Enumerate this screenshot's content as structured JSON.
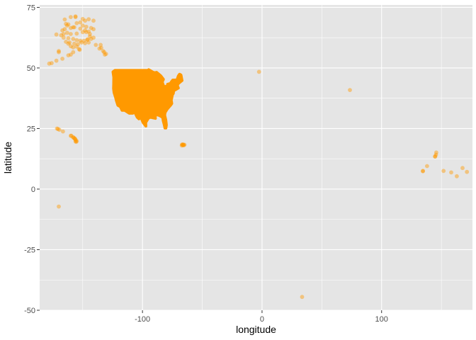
{
  "chart_data": {
    "type": "scatter",
    "title": "",
    "xlabel": "longitude",
    "ylabel": "latitude",
    "xlim": [
      -186,
      176
    ],
    "ylim": [
      -50,
      76
    ],
    "x_ticks": [
      {
        "value": -100,
        "label": "-100"
      },
      {
        "value": 0,
        "label": "0"
      },
      {
        "value": 100,
        "label": "100"
      }
    ],
    "y_ticks": [
      {
        "value": -50,
        "label": "-50"
      },
      {
        "value": -25,
        "label": "-25"
      },
      {
        "value": 0,
        "label": "0"
      },
      {
        "value": 25,
        "label": "25"
      },
      {
        "value": 50,
        "label": "50"
      },
      {
        "value": 75,
        "label": "75"
      }
    ],
    "grid": true,
    "panel_background": "#e5e5e5",
    "grid_color": "#ffffff",
    "point_color": "#ff9900",
    "point_alpha": 0.45,
    "series": [
      {
        "points": [
          [
            -165,
            70
          ],
          [
            -160,
            71
          ],
          [
            -156,
            71.3
          ],
          [
            -150,
            70.2
          ],
          [
            -145,
            70.1
          ],
          [
            -162,
            68
          ],
          [
            -155,
            68.5
          ],
          [
            -150,
            67.5
          ],
          [
            -147,
            67
          ],
          [
            -143,
            66.5
          ],
          [
            -165,
            66
          ],
          [
            -160,
            66.5
          ],
          [
            -157,
            66.8
          ],
          [
            -152,
            66.2
          ],
          [
            -148,
            65.5
          ],
          [
            -145,
            65
          ],
          [
            -141,
            66
          ],
          [
            -163,
            64.5
          ],
          [
            -160,
            64
          ],
          [
            -155,
            64.2
          ],
          [
            -150,
            64.8
          ],
          [
            -147,
            64.8
          ],
          [
            -144,
            64
          ],
          [
            -166,
            62.5
          ],
          [
            -162,
            62.3
          ],
          [
            -158,
            62
          ],
          [
            -155,
            61.5
          ],
          [
            -152,
            61.2
          ],
          [
            -149,
            61.2
          ],
          [
            -146,
            61.6
          ],
          [
            -143,
            62
          ],
          [
            -141,
            62.5
          ],
          [
            -164,
            60.8
          ],
          [
            -161,
            60.5
          ],
          [
            -157,
            60
          ],
          [
            -154,
            59.8
          ],
          [
            -151,
            60.5
          ],
          [
            -148,
            60.2
          ],
          [
            -145,
            60.5
          ],
          [
            -153,
            57.8
          ],
          [
            -152.5,
            57.5
          ],
          [
            -158,
            58.5
          ],
          [
            -155,
            58.8
          ],
          [
            -160,
            59
          ],
          [
            -162,
            60
          ],
          [
            -135,
            59.5
          ],
          [
            -134.5,
            58.3
          ],
          [
            -133,
            57
          ],
          [
            -132,
            56.5
          ],
          [
            -131.5,
            55.5
          ],
          [
            -130.5,
            55.8
          ],
          [
            -136,
            58
          ],
          [
            -139,
            59.5
          ],
          [
            -146,
            61.8
          ],
          [
            -144,
            63
          ],
          [
            -166,
            64
          ],
          [
            -167,
            65.5
          ],
          [
            -168,
            63.5
          ],
          [
            -170,
            57
          ],
          [
            -172,
            53
          ],
          [
            -176,
            52
          ],
          [
            -178,
            51.8
          ],
          [
            -167,
            53.8
          ],
          [
            -162,
            55.2
          ],
          [
            -160,
            55.5
          ],
          [
            -158,
            56.5
          ],
          [
            -170,
            56.5
          ],
          [
            -172,
            63.8
          ],
          [
            -156,
            71
          ],
          [
            -148,
            69.5
          ],
          [
            -141,
            69.5
          ],
          [
            -152,
            68.8
          ],
          [
            -163,
            67.5
          ],
          [
            -158,
            66.8
          ],
          [
            -164,
            68.2
          ]
        ]
      },
      {
        "points": [
          [
            -156,
            19.7
          ],
          [
            -155.5,
            19.5
          ],
          [
            -155,
            19.8
          ],
          [
            -156.5,
            20.8
          ],
          [
            -157,
            21
          ],
          [
            -158,
            21.4
          ],
          [
            -159.5,
            22
          ],
          [
            -157.8,
            21.3
          ],
          [
            -160,
            22
          ],
          [
            -155.8,
            20.2
          ],
          [
            -156.3,
            20.6
          ]
        ]
      },
      {
        "points": [
          [
            -170.7,
            24.8
          ],
          [
            -171.5,
            25
          ],
          [
            -169.5,
            24.5
          ],
          [
            -166.5,
            23.8
          ],
          [
            -170,
            -7.2
          ]
        ]
      },
      {
        "points": [
          [
            -67,
            18.4
          ],
          [
            -66.5,
            18.2
          ],
          [
            -66,
            18.3
          ],
          [
            -65.8,
            18.1
          ],
          [
            -64.9,
            18.3
          ],
          [
            -67.1,
            18
          ],
          [
            -66.2,
            18.45
          ],
          [
            -65.3,
            18.2
          ]
        ]
      },
      {
        "points": [
          [
            144.8,
            13.4
          ],
          [
            145.7,
            15.1
          ],
          [
            145.5,
            14.2
          ],
          [
            134.5,
            7.4
          ],
          [
            138,
            9.5
          ],
          [
            151.8,
            7.5
          ],
          [
            158.2,
            6.9
          ],
          [
            162.9,
            5.3
          ],
          [
            167.7,
            8.7
          ],
          [
            171.4,
            7.1
          ],
          [
            144.7,
            13.5
          ],
          [
            134.6,
            7.5
          ]
        ]
      },
      {
        "points": [
          [
            -2.5,
            48.4
          ],
          [
            73.5,
            40.9
          ],
          [
            33.5,
            -44.5
          ]
        ]
      }
    ],
    "filled_region": {
      "name": "contiguous US",
      "polygon": [
        [
          -124.7,
          48.4
        ],
        [
          -123,
          49
        ],
        [
          -95.2,
          49
        ],
        [
          -94.8,
          49.3
        ],
        [
          -91,
          48.2
        ],
        [
          -89.6,
          48
        ],
        [
          -88.2,
          48.2
        ],
        [
          -84.8,
          46.8
        ],
        [
          -84,
          46.3
        ],
        [
          -83.4,
          45.9
        ],
        [
          -82.5,
          45.3
        ],
        [
          -83.5,
          44.2
        ],
        [
          -82.5,
          42.8
        ],
        [
          -83.2,
          42
        ],
        [
          -79,
          42.6
        ],
        [
          -79,
          43.3
        ],
        [
          -76.5,
          43.6
        ],
        [
          -76,
          44.2
        ],
        [
          -74.7,
          45
        ],
        [
          -71.5,
          45
        ],
        [
          -71,
          45.3
        ],
        [
          -70,
          46.7
        ],
        [
          -69,
          47.4
        ],
        [
          -67.8,
          47.1
        ],
        [
          -66.9,
          44.8
        ],
        [
          -68.5,
          44.2
        ],
        [
          -70.2,
          43.5
        ],
        [
          -70.8,
          42.7
        ],
        [
          -70,
          41.7
        ],
        [
          -71.5,
          41.3
        ],
        [
          -73.9,
          40.6
        ],
        [
          -74.2,
          39.5
        ],
        [
          -75,
          38.9
        ],
        [
          -75.7,
          37.2
        ],
        [
          -76,
          36.9
        ],
        [
          -75.5,
          35.3
        ],
        [
          -76.5,
          34.6
        ],
        [
          -78,
          33.8
        ],
        [
          -79.5,
          32.9
        ],
        [
          -81,
          31.7
        ],
        [
          -81.4,
          30.5
        ],
        [
          -80.5,
          28.5
        ],
        [
          -80,
          26.5
        ],
        [
          -80.4,
          25.2
        ],
        [
          -81.2,
          25.2
        ],
        [
          -81.9,
          26.8
        ],
        [
          -82.7,
          28.2
        ],
        [
          -83,
          29.5
        ],
        [
          -84.5,
          30
        ],
        [
          -86,
          30.4
        ],
        [
          -88,
          30.7
        ],
        [
          -89.5,
          30.2
        ],
        [
          -89.2,
          29.2
        ],
        [
          -91,
          29.4
        ],
        [
          -93.5,
          29.7
        ],
        [
          -95,
          29.3
        ],
        [
          -97.3,
          27.5
        ],
        [
          -97.2,
          26
        ],
        [
          -99.5,
          27.5
        ],
        [
          -101.5,
          29.8
        ],
        [
          -103,
          29
        ],
        [
          -104.5,
          29.7
        ],
        [
          -106.5,
          31.8
        ],
        [
          -108.2,
          31.3
        ],
        [
          -111,
          31.3
        ],
        [
          -114.8,
          32.5
        ],
        [
          -117.1,
          32.5
        ],
        [
          -118.5,
          34
        ],
        [
          -120.6,
          34.6
        ],
        [
          -121.9,
          36.6
        ],
        [
          -122.5,
          37.8
        ],
        [
          -123.8,
          39.8
        ],
        [
          -124.2,
          41.5
        ],
        [
          -124.1,
          43.5
        ],
        [
          -124,
          46.2
        ],
        [
          -124.7,
          48.4
        ]
      ]
    }
  }
}
